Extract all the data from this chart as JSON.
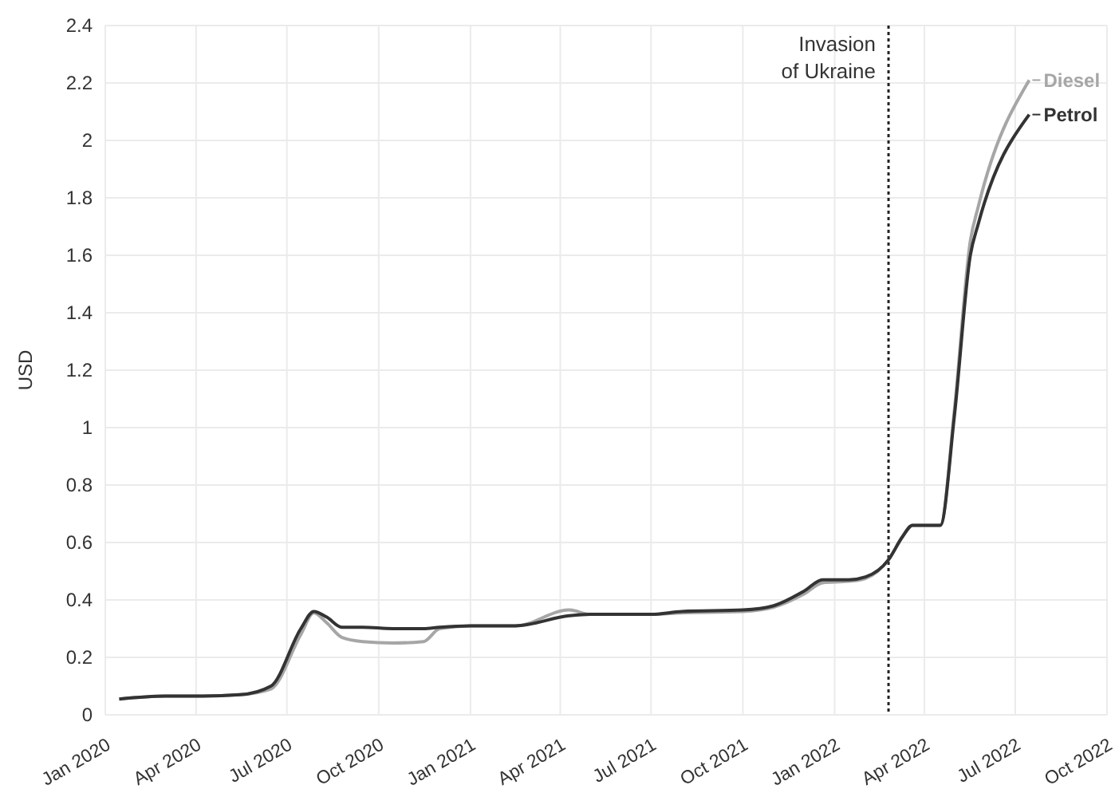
{
  "chart_data": {
    "type": "line",
    "ylabel": "USD",
    "ylim": [
      0,
      2.4
    ],
    "yticks": [
      0,
      0.2,
      0.4,
      0.6,
      0.8,
      1,
      1.2,
      1.4,
      1.6,
      1.8,
      2,
      2.2,
      2.4
    ],
    "xlim": [
      "2020-01-01",
      "2022-10-01"
    ],
    "xticks": [
      {
        "value": "2020-01",
        "label": "Jan 2020"
      },
      {
        "value": "2020-04",
        "label": "Apr 2020"
      },
      {
        "value": "2020-07",
        "label": "Jul 2020"
      },
      {
        "value": "2020-10",
        "label": "Oct 2020"
      },
      {
        "value": "2021-01",
        "label": "Jan 2021"
      },
      {
        "value": "2021-04",
        "label": "Apr 2021"
      },
      {
        "value": "2021-07",
        "label": "Jul 2021"
      },
      {
        "value": "2021-10",
        "label": "Oct 2021"
      },
      {
        "value": "2022-01",
        "label": "Jan 2022"
      },
      {
        "value": "2022-04",
        "label": "Apr 2022"
      },
      {
        "value": "2022-07",
        "label": "Jul 2022"
      },
      {
        "value": "2022-10",
        "label": "Oct 2022"
      }
    ],
    "grid": true,
    "legend": "right",
    "ref_lines": [
      {
        "axis": "x",
        "value": "2022-02-24",
        "label": "Invasion of Ukraine",
        "color": "#222222",
        "line_style": "dotted"
      }
    ],
    "series": [
      {
        "name": "Diesel",
        "color": "#a6a6a6",
        "x": [
          "2020-01-15",
          "2020-03-01",
          "2020-04-01",
          "2020-05-15",
          "2020-06-15",
          "2020-07-15",
          "2020-07-28",
          "2020-08-10",
          "2020-08-25",
          "2020-09-15",
          "2020-10-15",
          "2020-11-15",
          "2020-12-01",
          "2021-01-01",
          "2021-02-15",
          "2021-04-10",
          "2021-05-01",
          "2021-07-01",
          "2021-08-01",
          "2021-10-01",
          "2021-11-01",
          "2021-12-01",
          "2021-12-20",
          "2022-01-15",
          "2022-02-01",
          "2022-02-24",
          "2022-03-10",
          "2022-03-20",
          "2022-04-17",
          "2022-05-01",
          "2022-05-17",
          "2022-05-25",
          "2022-07-15"
        ],
        "values": [
          0.055,
          0.065,
          0.065,
          0.07,
          0.09,
          0.28,
          0.355,
          0.32,
          0.27,
          0.255,
          0.25,
          0.255,
          0.3,
          0.31,
          0.31,
          0.365,
          0.35,
          0.35,
          0.355,
          0.36,
          0.375,
          0.42,
          0.46,
          0.465,
          0.475,
          0.54,
          0.62,
          0.66,
          0.66,
          1.06,
          1.65,
          1.77,
          2.21
        ]
      },
      {
        "name": "Petrol",
        "color": "#333333",
        "x": [
          "2020-01-15",
          "2020-03-01",
          "2020-04-01",
          "2020-05-15",
          "2020-06-15",
          "2020-07-15",
          "2020-07-28",
          "2020-08-10",
          "2020-08-25",
          "2020-09-15",
          "2020-10-15",
          "2020-11-15",
          "2020-12-01",
          "2021-01-01",
          "2021-02-15",
          "2021-04-10",
          "2021-05-01",
          "2021-07-01",
          "2021-08-01",
          "2021-10-01",
          "2021-11-01",
          "2021-12-01",
          "2021-12-20",
          "2022-01-15",
          "2022-02-01",
          "2022-02-24",
          "2022-03-10",
          "2022-03-20",
          "2022-04-17",
          "2022-05-01",
          "2022-05-17",
          "2022-05-25",
          "2022-07-15"
        ],
        "values": [
          0.055,
          0.065,
          0.065,
          0.07,
          0.1,
          0.3,
          0.36,
          0.34,
          0.305,
          0.305,
          0.3,
          0.3,
          0.305,
          0.31,
          0.31,
          0.345,
          0.35,
          0.35,
          0.36,
          0.365,
          0.38,
          0.43,
          0.47,
          0.47,
          0.48,
          0.54,
          0.62,
          0.66,
          0.66,
          1.04,
          1.6,
          1.71,
          2.09
        ]
      }
    ]
  }
}
